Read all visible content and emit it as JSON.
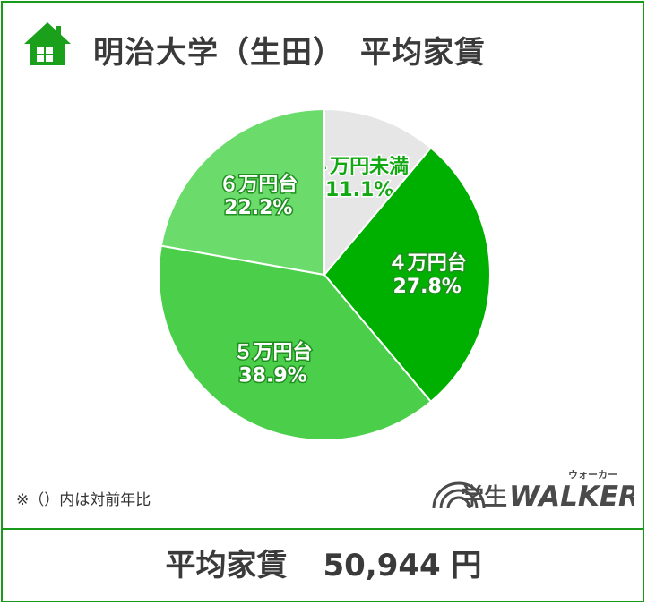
{
  "header": {
    "title": "明治大学（生田）　平均家賃",
    "icon": "house-icon"
  },
  "chart_data": {
    "type": "pie",
    "slices": [
      {
        "label": "４万円未満",
        "value": 11.1,
        "value_label": "11.1%",
        "color": "#e6e6e6",
        "text_color": "#12a812"
      },
      {
        "label": "４万円台",
        "value": 27.8,
        "value_label": "27.8%",
        "color": "#00b000",
        "text_color": "#ffffff"
      },
      {
        "label": "５万円台",
        "value": 38.9,
        "value_label": "38.9%",
        "color": "#4bcf4b",
        "text_color": "#ffffff"
      },
      {
        "label": "６万円台",
        "value": 22.2,
        "value_label": "22.2%",
        "color": "#6bdc6b",
        "text_color": "#ffffff"
      }
    ],
    "start": "12 o'clock",
    "direction": "clockwise"
  },
  "footnote": "※（）内は対前年比",
  "logo": {
    "main": "学生WALKER",
    "ruby": "ウォーカー"
  },
  "average": {
    "label": "平均家賃",
    "value": "50,944 円"
  }
}
